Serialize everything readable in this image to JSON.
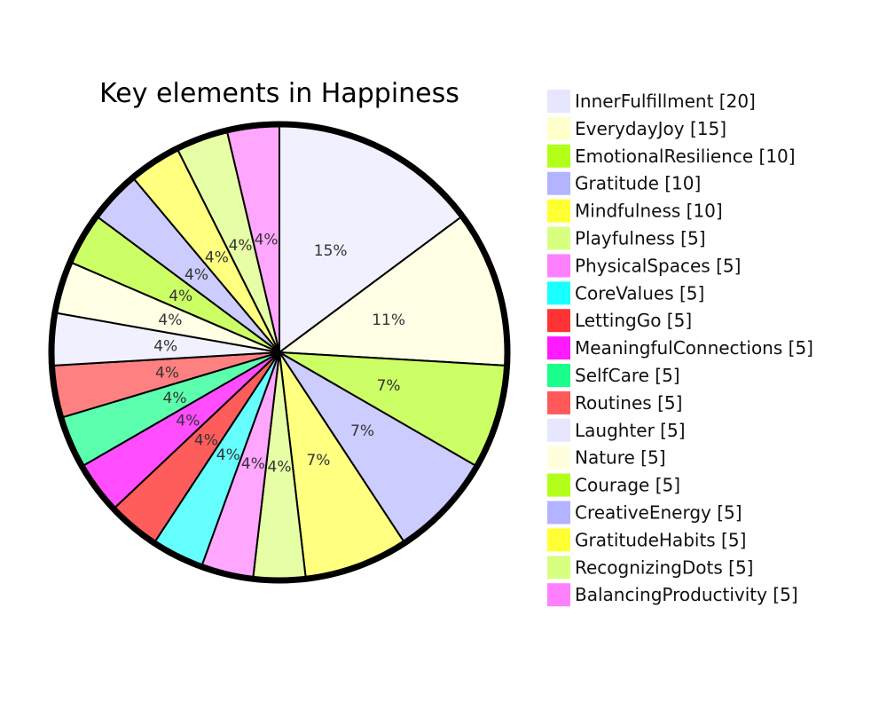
{
  "chart_data": {
    "type": "pie",
    "title": "Key elements in Happiness",
    "labels": [
      "InnerFulfillment",
      "EverydayJoy",
      "EmotionalResilience",
      "Gratitude",
      "Mindfulness",
      "Playfulness",
      "PhysicalSpaces",
      "CoreValues",
      "LettingGo",
      "MeaningfulConnections",
      "SelfCare",
      "Routines",
      "Laughter",
      "Nature",
      "Courage",
      "CreativeEnergy",
      "GratitudeHabits",
      "RecognizingDots",
      "BalancingProductivity"
    ],
    "values": [
      20,
      15,
      10,
      10,
      10,
      5,
      5,
      5,
      5,
      5,
      5,
      5,
      5,
      5,
      5,
      5,
      5,
      5,
      5
    ],
    "legend_labels": [
      "InnerFulfillment [20]",
      "EverydayJoy [15]",
      "EmotionalResilience [10]",
      "Gratitude [10]",
      "Mindfulness [10]",
      "Playfulness [5]",
      "PhysicalSpaces [5]",
      "CoreValues [5]",
      "LettingGo [5]",
      "MeaningfulConnections [5]",
      "SelfCare [5]",
      "Routines [5]",
      "Laughter [5]",
      "Nature [5]",
      "Courage [5]",
      "CreativeEnergy [5]",
      "GratitudeHabits [5]",
      "RecognizingDots [5]",
      "BalancingProductivity [5]"
    ],
    "percent_labels": [
      "15%",
      "11%",
      "7%",
      "7%",
      "7%",
      "4%",
      "4%",
      "4%",
      "4%",
      "4%",
      "4%",
      "4%",
      "4%",
      "4%",
      "4%",
      "4%",
      "4%",
      "4%",
      "4%"
    ],
    "legend_colors": [
      "#e6e6ff",
      "#ffffcc",
      "#b3ff1a",
      "#b3b3ff",
      "#ffff33",
      "#d9ff80",
      "#ff80ff",
      "#1affff",
      "#ff3333",
      "#ff1aff",
      "#1aff8c",
      "#ff5959",
      "#e6e6ff",
      "#ffffe0",
      "#b3ff1a",
      "#b3b3ff",
      "#ffff33",
      "#d9ff80",
      "#ff80ff"
    ],
    "slice_colors": [
      "#f0f0ff",
      "#ffffe6",
      "#ccff66",
      "#ccccff",
      "#ffff80",
      "#e6ffa6",
      "#ffa6ff",
      "#66ffff",
      "#ff5c5c",
      "#ff4dff",
      "#5cffad",
      "#ff8080",
      "#f0f0ff",
      "#ffffe6",
      "#ccff66",
      "#ccccff",
      "#ffff80",
      "#e6ffa6",
      "#ffa6ff"
    ],
    "start_angle": "12 o'clock",
    "direction": "clockwise",
    "legend_position": "right"
  }
}
